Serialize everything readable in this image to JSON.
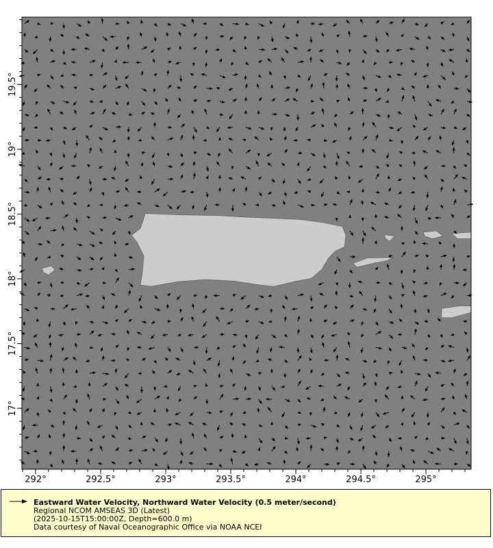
{
  "chart_data": {
    "type": "vector-map",
    "background_color": "#808080",
    "land_color": "#cccccc",
    "vector_color": "#000000",
    "lon_range": [
      291.895,
      295.347
    ],
    "lat_range": [
      16.53,
      20.02
    ],
    "grid_step_deg": 0.1,
    "reference_vector": "0.5 meter/second",
    "x_ticks": [
      {
        "value": 292,
        "label": "292°"
      },
      {
        "value": 292.5,
        "label": "292.5°"
      },
      {
        "value": 293,
        "label": "293°"
      },
      {
        "value": 293.5,
        "label": "293.5°"
      },
      {
        "value": 294,
        "label": "294°"
      },
      {
        "value": 294.5,
        "label": "294.5°"
      },
      {
        "value": 295,
        "label": "295°"
      }
    ],
    "y_ticks": [
      {
        "value": 17,
        "label": "17°"
      },
      {
        "value": 17.5,
        "label": "17.5°"
      },
      {
        "value": 18,
        "label": "18°"
      },
      {
        "value": 18.5,
        "label": "18.5°"
      },
      {
        "value": 19,
        "label": "19°"
      },
      {
        "value": 19.5,
        "label": "19.5°"
      }
    ],
    "land": [
      {
        "name": "Puerto Rico",
        "lonlat": [
          [
            292.842,
            18.504
          ],
          [
            293.095,
            18.494
          ],
          [
            293.411,
            18.488
          ],
          [
            293.569,
            18.478
          ],
          [
            293.832,
            18.467
          ],
          [
            294.042,
            18.457
          ],
          [
            294.2,
            18.436
          ],
          [
            294.358,
            18.404
          ],
          [
            294.384,
            18.336
          ],
          [
            294.374,
            18.246
          ],
          [
            294.305,
            18.215
          ],
          [
            294.253,
            18.162
          ],
          [
            294.2,
            18.073
          ],
          [
            294.121,
            18.004
          ],
          [
            293.99,
            17.978
          ],
          [
            293.832,
            17.941
          ],
          [
            293.727,
            17.952
          ],
          [
            293.516,
            17.983
          ],
          [
            293.305,
            17.994
          ],
          [
            293.095,
            17.978
          ],
          [
            292.884,
            17.941
          ],
          [
            292.805,
            17.952
          ],
          [
            292.821,
            18.046
          ],
          [
            292.832,
            18.178
          ],
          [
            292.779,
            18.283
          ],
          [
            292.737,
            18.336
          ],
          [
            292.805,
            18.389
          ],
          [
            292.832,
            18.467
          ]
        ]
      },
      {
        "name": "Mona",
        "lonlat": [
          [
            292.05,
            18.08
          ],
          [
            292.12,
            18.1
          ],
          [
            292.15,
            18.07
          ],
          [
            292.1,
            18.03
          ],
          [
            292.06,
            18.05
          ]
        ]
      },
      {
        "name": "Vieques",
        "lonlat": [
          [
            294.437,
            18.12
          ],
          [
            294.55,
            18.16
          ],
          [
            294.75,
            18.165
          ],
          [
            294.7,
            18.14
          ],
          [
            294.6,
            18.12
          ],
          [
            294.47,
            18.09
          ]
        ]
      },
      {
        "name": "Culebra",
        "lonlat": [
          [
            294.68,
            18.34
          ],
          [
            294.76,
            18.33
          ],
          [
            294.72,
            18.29
          ],
          [
            294.69,
            18.31
          ]
        ]
      },
      {
        "name": "St Thomas",
        "lonlat": [
          [
            294.98,
            18.36
          ],
          [
            295.08,
            18.37
          ],
          [
            295.13,
            18.33
          ],
          [
            295.05,
            18.31
          ],
          [
            294.99,
            18.33
          ]
        ]
      },
      {
        "name": "St John",
        "lonlat": [
          [
            295.2,
            18.35
          ],
          [
            295.347,
            18.36
          ],
          [
            295.347,
            18.31
          ],
          [
            295.24,
            18.31
          ]
        ]
      },
      {
        "name": "St Croix",
        "lonlat": [
          [
            295.12,
            17.77
          ],
          [
            295.25,
            17.79
          ],
          [
            295.347,
            17.79
          ],
          [
            295.347,
            17.74
          ],
          [
            295.2,
            17.7
          ],
          [
            295.12,
            17.7
          ]
        ]
      }
    ]
  },
  "legend": {
    "title": "Eastward Water Velocity, Northward Water Velocity (0.5 meter/second)",
    "line2": "Regional NCOM AMSEAS 3D (Latest)",
    "line3": "(2025-10-15T15:00:00Z, Depth=600.0 m)",
    "line4": "Data courtesy of Naval Oceanographic Office via NOAA NCEI"
  }
}
